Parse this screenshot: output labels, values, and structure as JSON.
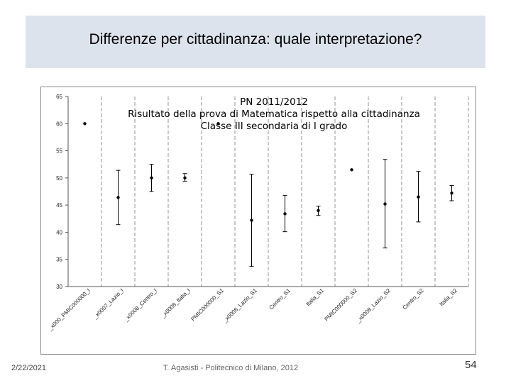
{
  "slide": {
    "title": "Differenze per cittadinanza: quale interpretazione?",
    "date": "2/22/2021",
    "author": "T. Agasisti - Politecnico di Milano, 2012",
    "page_number": "54"
  },
  "chart_data": {
    "type": "scatter",
    "title_lines": [
      "PN 2011/2012",
      "Risultato della prova di Matematica rispetto alla cittadinanza",
      "Classe III secondaria di I grado"
    ],
    "ylim": [
      30,
      65
    ],
    "yticks": [
      30,
      35,
      40,
      45,
      50,
      55,
      60,
      65
    ],
    "grid": true,
    "categories": [
      "_x000_PMIC000000_I",
      "_x0007_Lazio_I",
      "_x0008_Centro_I",
      "_x0008_Italia_I",
      "PMIC000000_S1",
      "_x0008_Lazio_S1",
      "Centro_S1",
      "Italia_S1",
      "PMIC000000_S2",
      "_x0008_Lazio_S2",
      "Centro_S2",
      "Italia_S2"
    ],
    "series": [
      {
        "values": [
          60,
          46.4,
          50,
          50,
          60,
          42.2,
          43.4,
          44,
          51.5,
          45.2,
          46.5,
          47.2
        ],
        "upper": [
          null,
          51.4,
          52.5,
          50.8,
          null,
          50.7,
          46.8,
          44.8,
          null,
          53.4,
          51.2,
          48.6
        ],
        "lower": [
          null,
          41.4,
          47.5,
          49.4,
          null,
          33.7,
          40.1,
          43.1,
          null,
          37.1,
          41.9,
          45.8
        ]
      }
    ]
  }
}
